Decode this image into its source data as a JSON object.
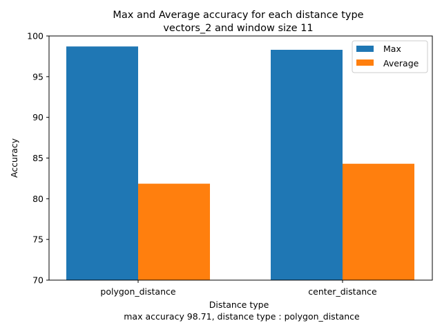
{
  "chart_data": {
    "type": "bar",
    "title_lines": [
      "Max and Average accuracy for each distance type",
      "vectors_2 and window size 11"
    ],
    "xlabel": "Distance type",
    "ylabel": "Accuracy",
    "note": "max accuracy 98.71, distance type : polygon_distance",
    "categories": [
      "polygon_distance",
      "center_distance"
    ],
    "series": [
      {
        "name": "Max",
        "values": [
          98.71,
          98.3
        ],
        "color": "#1f77b4"
      },
      {
        "name": "Average",
        "values": [
          81.85,
          84.3
        ],
        "color": "#ff7f0e"
      }
    ],
    "ylim": [
      70,
      100
    ],
    "yticks": [
      "70",
      "75",
      "80",
      "85",
      "90",
      "95",
      "100"
    ],
    "grid": false,
    "legend_position": "top-right"
  }
}
